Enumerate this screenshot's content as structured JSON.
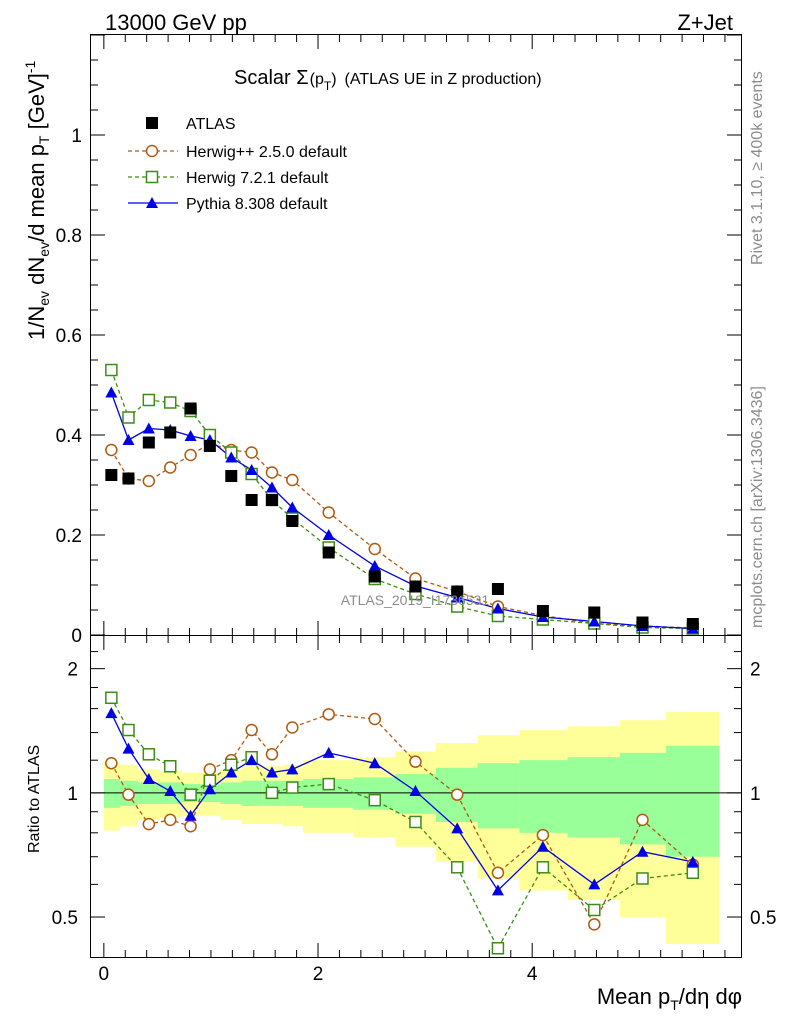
{
  "header": {
    "left": "13000 GeV pp",
    "right": "Z+Jet"
  },
  "side_labels": {
    "rivet": "Rivet 3.1.10, ≥ 400k events",
    "mcplots": "mcplots.cern.ch [arXiv:1306.3436]"
  },
  "watermark": "ATLAS_2019_I1736531",
  "colors": {
    "data": "#000000",
    "herwigpp": "#b05a10",
    "herwig7": "#3d8c16",
    "pythia": "#0000e6",
    "band_inner": "#99ff99",
    "band_outer": "#ffff99"
  },
  "chart_data": [
    {
      "type": "scatter",
      "title": "Scalar Σ(p_T) (ATLAS UE in Z production)",
      "title_parts": {
        "main": "Scalar Σ",
        "sub_open": "(p",
        "sub_T": "T",
        "sub_close": ")",
        "rest": "(ATLAS UE in Z production)"
      },
      "xlabel": "Mean p_T/dη dφ",
      "ylabel": "1/N_ev dN_ev/d mean p_T [GeV]^-1",
      "xlim": [
        -0.12,
        5.95
      ],
      "ylim": [
        0,
        1.2
      ],
      "y_ticks": [
        0,
        0.2,
        0.4,
        0.6,
        0.8,
        1
      ],
      "y_tick_labels": [
        "0",
        "0.2",
        "0.4",
        "0.6",
        "0.8",
        "1"
      ],
      "x": [
        0.07,
        0.23,
        0.42,
        0.62,
        0.81,
        0.99,
        1.19,
        1.38,
        1.57,
        1.76,
        2.1,
        2.53,
        2.91,
        3.3,
        3.68,
        4.1,
        4.58,
        5.03,
        5.5
      ],
      "series": [
        {
          "name": "ATLAS",
          "marker": "square",
          "values": [
            0.32,
            0.313,
            0.385,
            0.405,
            0.453,
            0.378,
            0.318,
            0.27,
            0.27,
            0.228,
            0.165,
            0.117,
            0.097,
            0.087,
            0.092,
            0.048,
            0.045,
            0.025,
            0.022
          ]
        },
        {
          "name": "Herwig++ 2.5.0 default",
          "marker": "circle",
          "values": [
            0.37,
            0.313,
            0.308,
            0.335,
            0.36,
            0.383,
            0.37,
            0.365,
            0.325,
            0.31,
            0.245,
            0.172,
            0.113,
            0.087,
            0.057,
            0.039,
            0.023,
            0.018,
            0.014
          ]
        },
        {
          "name": "Herwig 7.2.1 default",
          "marker": "open-square",
          "values": [
            0.53,
            0.435,
            0.47,
            0.465,
            0.448,
            0.4,
            0.365,
            0.322,
            0.27,
            0.233,
            0.175,
            0.112,
            0.082,
            0.057,
            0.038,
            0.031,
            0.023,
            0.015,
            0.013
          ]
        },
        {
          "name": "Pythia 8.308 default",
          "marker": "triangle",
          "values": [
            0.485,
            0.39,
            0.413,
            0.41,
            0.398,
            0.39,
            0.355,
            0.33,
            0.295,
            0.255,
            0.2,
            0.138,
            0.098,
            0.075,
            0.053,
            0.036,
            0.027,
            0.018,
            0.013
          ]
        }
      ]
    },
    {
      "type": "scatter",
      "title": "",
      "xlabel": "Mean p_T/dη dφ",
      "ylabel": "Ratio to ATLAS",
      "xlim": [
        -0.12,
        5.95
      ],
      "ylim": [
        0.4,
        2.4
      ],
      "y_scale": "log",
      "y_ticks": [
        0.5,
        1,
        2
      ],
      "y_tick_labels": [
        "0.5",
        "1",
        "2"
      ],
      "x_ticks": [
        0,
        2,
        4
      ],
      "x_tick_labels": [
        "0",
        "2",
        "4"
      ],
      "x_edges": [
        0,
        0.15,
        0.32,
        0.52,
        0.72,
        0.9,
        1.09,
        1.29,
        1.48,
        1.67,
        1.86,
        2.33,
        2.72,
        3.1,
        3.49,
        3.88,
        4.33,
        4.82,
        5.25,
        5.75
      ],
      "band_inner_halfwidth": [
        0.08,
        0.07,
        0.06,
        0.06,
        0.05,
        0.05,
        0.06,
        0.07,
        0.07,
        0.07,
        0.08,
        0.09,
        0.11,
        0.15,
        0.18,
        0.2,
        0.22,
        0.25,
        0.3
      ],
      "band_outer_halfwidth": [
        0.19,
        0.17,
        0.14,
        0.13,
        0.12,
        0.12,
        0.14,
        0.16,
        0.16,
        0.17,
        0.2,
        0.22,
        0.26,
        0.32,
        0.38,
        0.42,
        0.45,
        0.5,
        0.57
      ],
      "series": [
        {
          "name": "Herwig++ 2.5.0 default",
          "values": [
            1.18,
            0.99,
            0.84,
            0.86,
            0.83,
            1.14,
            1.2,
            1.42,
            1.24,
            1.44,
            1.55,
            1.51,
            1.19,
            0.99,
            0.64,
            0.79,
            0.48,
            0.86,
            0.67
          ]
        },
        {
          "name": "Herwig 7.2.1 default",
          "values": [
            1.7,
            1.42,
            1.24,
            1.16,
            0.99,
            1.07,
            1.17,
            1.22,
            1.0,
            1.03,
            1.05,
            0.96,
            0.85,
            0.66,
            0.42,
            0.66,
            0.52,
            0.62,
            0.64
          ]
        },
        {
          "name": "Pythia 8.308 default",
          "values": [
            1.56,
            1.28,
            1.08,
            1.01,
            0.88,
            1.02,
            1.12,
            1.2,
            1.12,
            1.14,
            1.25,
            1.18,
            1.01,
            0.82,
            0.58,
            0.74,
            0.6,
            0.72,
            0.68
          ]
        }
      ]
    }
  ]
}
